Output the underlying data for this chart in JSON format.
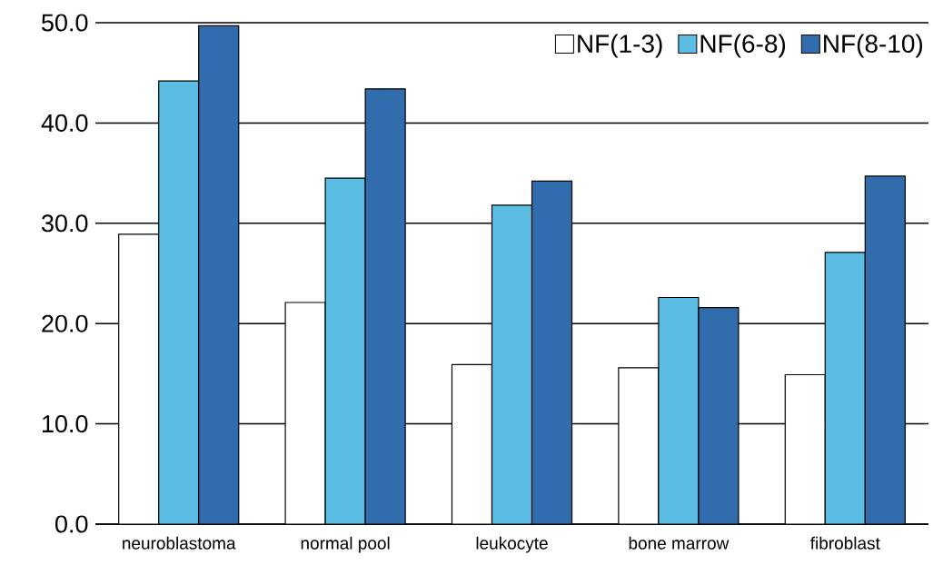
{
  "chart_data": {
    "type": "bar",
    "categories": [
      "neuroblastoma",
      "normal pool",
      "leukocyte",
      "bone marrow",
      "fibroblast"
    ],
    "series": [
      {
        "name": "NF(1-3)",
        "color": "#ffffff",
        "values": [
          28.9,
          22.1,
          15.9,
          15.6,
          14.9
        ]
      },
      {
        "name": "NF(6-8)",
        "color": "#5bbde4",
        "values": [
          44.2,
          34.5,
          31.8,
          22.6,
          27.1
        ]
      },
      {
        "name": "NF(8-10)",
        "color": "#316cad",
        "values": [
          49.7,
          43.4,
          34.2,
          21.6,
          34.7
        ]
      }
    ],
    "ylim": [
      0,
      50
    ],
    "yticks": [
      {
        "value": 0,
        "label": "0.0"
      },
      {
        "value": 10,
        "label": "10.0"
      },
      {
        "value": 20,
        "label": "20.0"
      },
      {
        "value": 30,
        "label": "30.0"
      },
      {
        "value": 40,
        "label": "40.0"
      },
      {
        "value": 50,
        "label": "50.0"
      }
    ],
    "grid": "y",
    "legend": "top right"
  }
}
